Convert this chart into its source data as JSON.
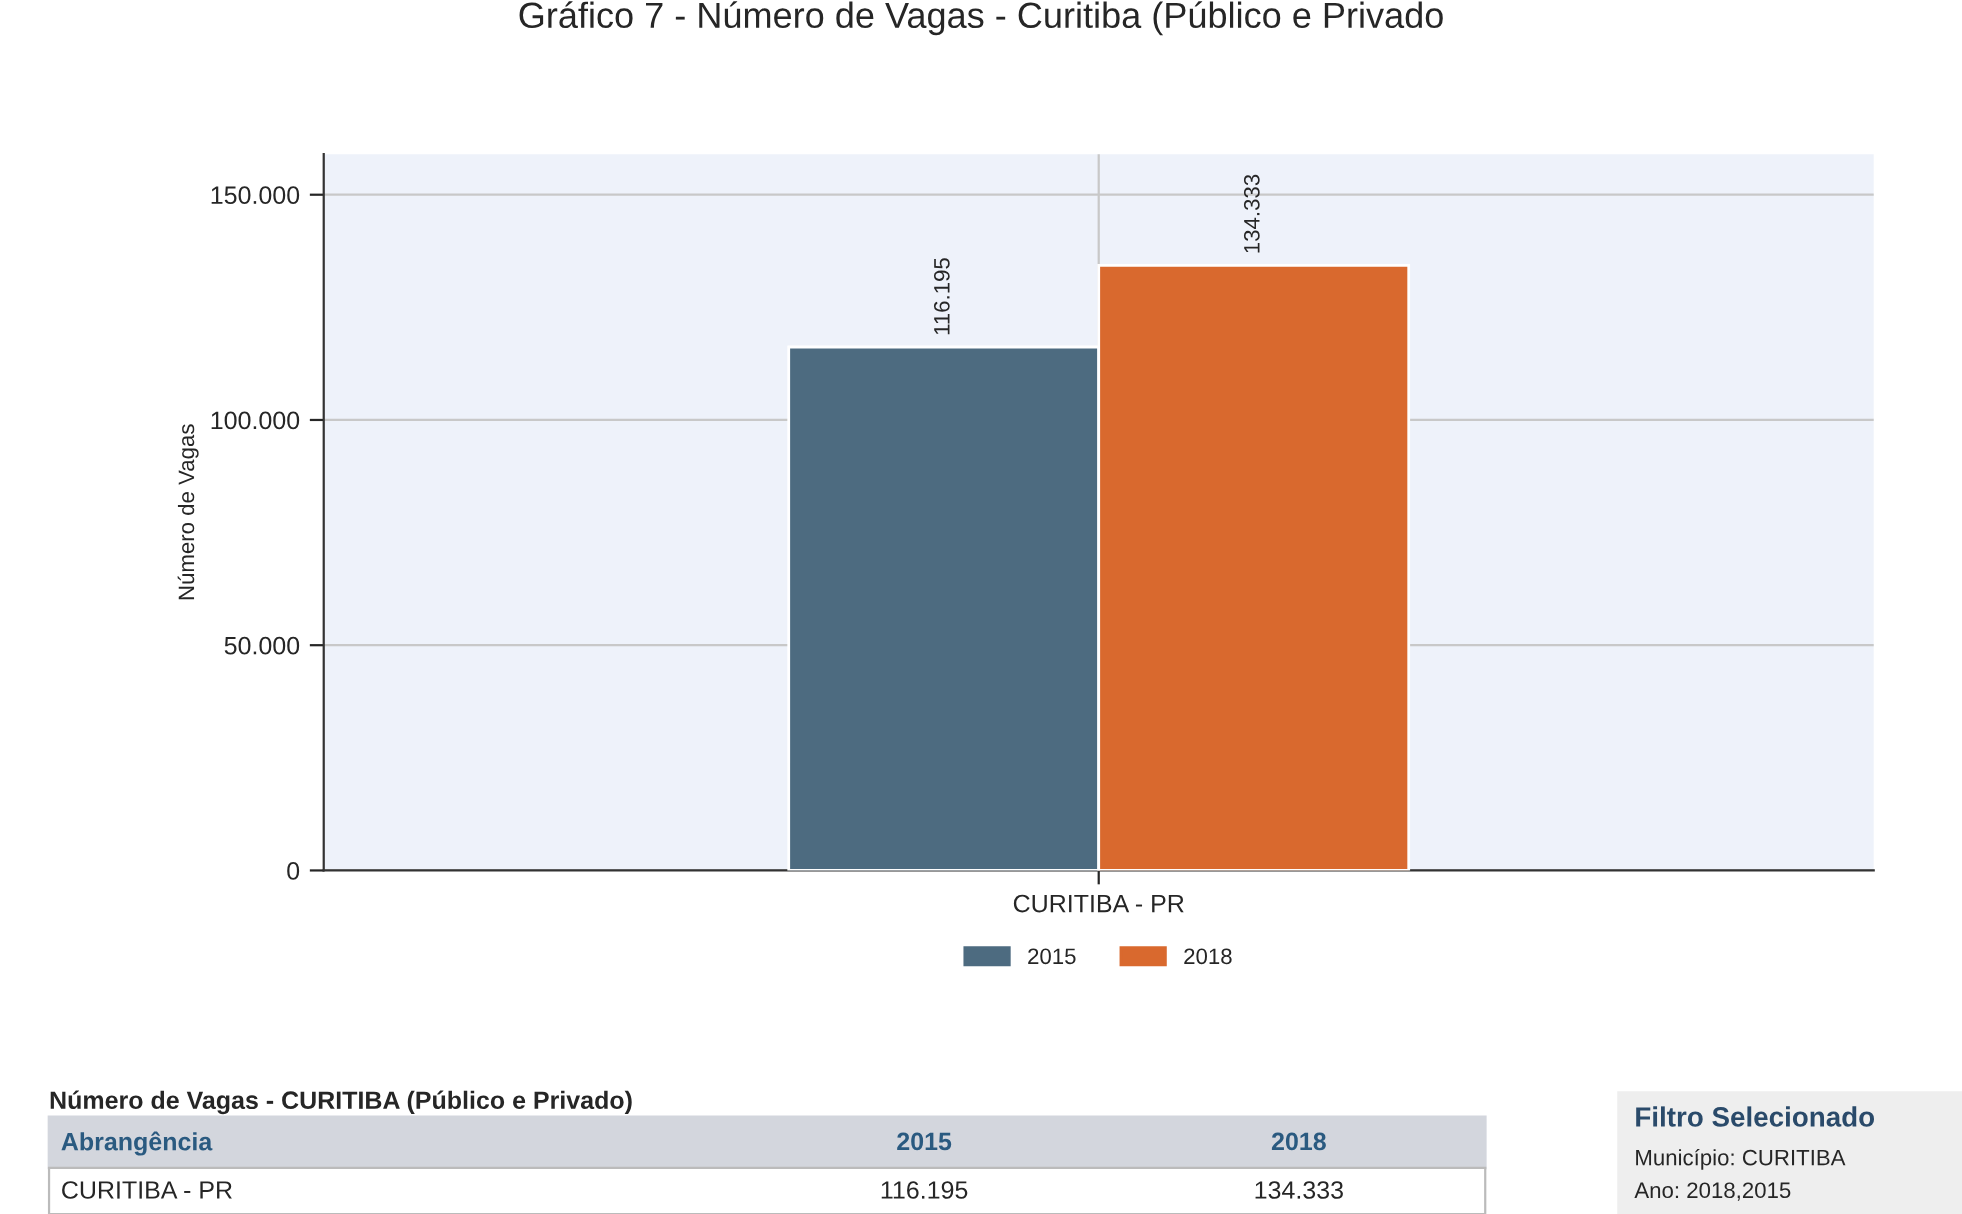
{
  "chart_data": {
    "type": "bar",
    "title": "Gráfico 7 - Número de Vagas - Curitiba (Público e Privado",
    "categories": [
      "CURITIBA - PR"
    ],
    "series": [
      {
        "name": "2015",
        "color": "#4d6b80",
        "values": [
          116195
        ],
        "value_labels": [
          "116.195"
        ]
      },
      {
        "name": "2018",
        "color": "#d9692e",
        "values": [
          134333
        ],
        "value_labels": [
          "134.333"
        ]
      }
    ],
    "ylabel": "Número de Vagas",
    "ylim": [
      0,
      159000
    ],
    "yticks": [
      {
        "value": 0,
        "label": "0"
      },
      {
        "value": 50000,
        "label": "50.000"
      },
      {
        "value": 100000,
        "label": "100.000"
      },
      {
        "value": 150000,
        "label": "150.000"
      }
    ],
    "grid": true,
    "legend": "bottom",
    "annotations": [
      "Número de Vagas - CURITIBA (Público e Privado)",
      "Abrangência",
      "Filtro Selecionado",
      "Município: CURITIBA",
      "Ano: 2018,2015"
    ]
  }
}
